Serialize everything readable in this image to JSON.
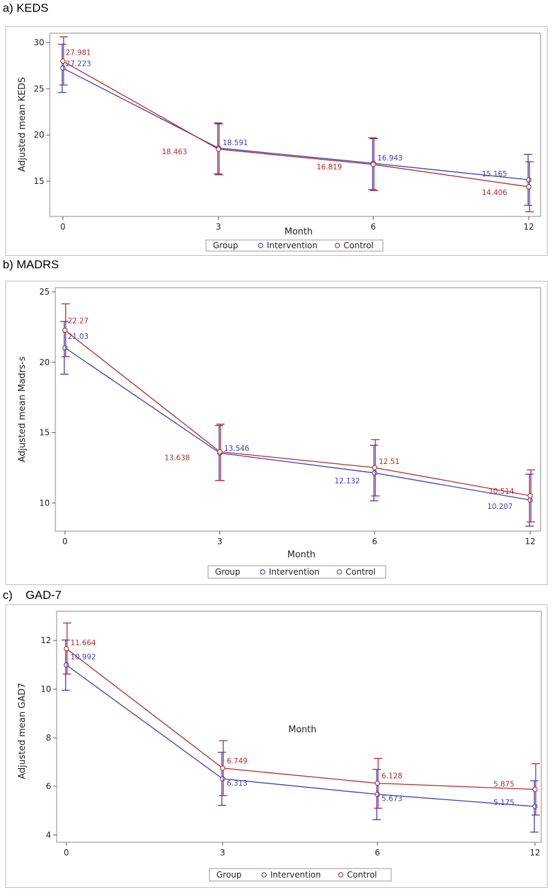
{
  "colors": {
    "intervention": "#3b3fb0",
    "control": "#b02a2a",
    "axis": "#555555",
    "frame": "#c0c0c0"
  },
  "legend": {
    "title": "Group",
    "intervention": "Intervention",
    "control": "Control"
  },
  "chart_data": [
    {
      "id": "keds",
      "panel_title": "a) KEDS",
      "type": "line",
      "xlabel": "Month",
      "ylabel": "Adjusted mean KEDS",
      "x": [
        0,
        3,
        6,
        12
      ],
      "x_ticks": [
        "0",
        "3",
        "6",
        "12"
      ],
      "ylim": [
        11.2,
        31
      ],
      "y_ticks": [
        15,
        20,
        25,
        30
      ],
      "series": [
        {
          "name": "Intervention",
          "values": [
            27.223,
            18.591,
            16.943,
            15.165
          ],
          "labels": [
            "27.223",
            "18.591",
            "16.943",
            "15.165"
          ],
          "ci_low": [
            24.6,
            15.8,
            14.1,
            12.4
          ],
          "ci_high": [
            29.8,
            21.3,
            19.7,
            17.9
          ]
        },
        {
          "name": "Control",
          "values": [
            27.981,
            18.463,
            16.819,
            14.406
          ],
          "labels": [
            "27.981",
            "18.463",
            "16.819",
            "14.406"
          ],
          "ci_low": [
            25.4,
            15.7,
            14.0,
            11.7
          ],
          "ci_high": [
            30.6,
            21.2,
            19.6,
            17.1
          ]
        }
      ]
    },
    {
      "id": "madrs",
      "panel_title": "b) MADRS",
      "type": "line",
      "xlabel": "Month",
      "ylabel": "Adjusted mean Madrs-s",
      "x": [
        0,
        3,
        6,
        12
      ],
      "x_ticks": [
        "0",
        "3",
        "6",
        "12"
      ],
      "ylim": [
        8,
        25.3
      ],
      "y_ticks": [
        10,
        15,
        20,
        25
      ],
      "series": [
        {
          "name": "Intervention",
          "values": [
            21.03,
            13.546,
            12.132,
            10.207
          ],
          "labels": [
            "21.03",
            "13.546",
            "12.132",
            "10.207"
          ],
          "ci_low": [
            19.15,
            11.6,
            10.15,
            8.35
          ],
          "ci_high": [
            22.9,
            15.5,
            14.1,
            12.05
          ]
        },
        {
          "name": "Control",
          "values": [
            22.27,
            13.638,
            12.51,
            10.514
          ],
          "labels": [
            "22.27",
            "13.638",
            "12.51",
            "10.514"
          ],
          "ci_low": [
            20.4,
            11.6,
            10.5,
            8.65
          ],
          "ci_high": [
            24.15,
            15.6,
            14.5,
            12.35
          ]
        }
      ]
    },
    {
      "id": "gad7",
      "panel_title": "c)    GAD-7",
      "type": "line",
      "xlabel": "Month",
      "ylabel": "Adjusted mean GAD7",
      "x": [
        0,
        3,
        6,
        12
      ],
      "x_ticks": [
        "0",
        "3",
        "6",
        "12"
      ],
      "ylim": [
        3.7,
        13.2
      ],
      "y_ticks": [
        4,
        6,
        8,
        10,
        12
      ],
      "series": [
        {
          "name": "Intervention",
          "values": [
            10.992,
            6.313,
            5.673,
            5.175
          ],
          "labels": [
            "10.992",
            "6.313",
            "5.673",
            "5.175"
          ],
          "ci_low": [
            9.95,
            5.22,
            4.63,
            4.12
          ],
          "ci_high": [
            12.02,
            7.4,
            6.7,
            6.23
          ]
        },
        {
          "name": "Control",
          "values": [
            11.664,
            6.749,
            6.128,
            5.875
          ],
          "labels": [
            "11.664",
            "6.749",
            "6.128",
            "5.875"
          ],
          "ci_low": [
            10.62,
            5.62,
            5.1,
            4.82
          ],
          "ci_high": [
            12.72,
            7.88,
            7.15,
            6.93
          ]
        }
      ]
    }
  ]
}
